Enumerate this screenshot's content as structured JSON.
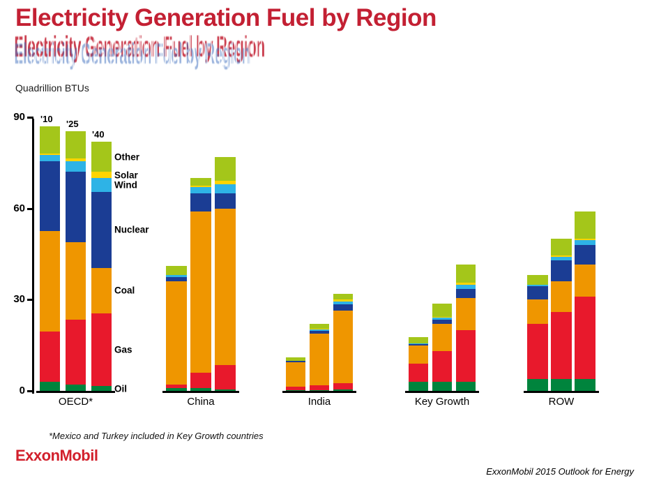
{
  "title": "Electricity Generation Fuel by Region",
  "ghost_title": "Electricity Generation Fuel by Region",
  "units_label": "Quadrillion BTUs",
  "footnote": "*Mexico and Turkey included in Key Growth countries",
  "logo_text": "ExxonMobil",
  "source_text": "ExxonMobil 2015 Outlook for Energy",
  "colors": {
    "title_red": "#c32033",
    "logo_red": "#d2202c",
    "ghost_blue": "#3f6fbf",
    "axis_black": "#000000"
  },
  "chart_data": {
    "type": "bar",
    "stacked": true,
    "title": "Electricity Generation Fuel by Region",
    "ylabel": "Quadrillion BTUs",
    "ylim": [
      0,
      90
    ],
    "yticks": [
      0,
      30,
      60,
      90
    ],
    "grid": false,
    "legend_position": "inline-right-of-first-group",
    "bar_year_labels": [
      "'10",
      "'25",
      "'40"
    ],
    "fuels": [
      {
        "name": "Oil",
        "color": "#00843d"
      },
      {
        "name": "Gas",
        "color": "#e8192c"
      },
      {
        "name": "Coal",
        "color": "#ef9600"
      },
      {
        "name": "Nuclear",
        "color": "#1b3d94"
      },
      {
        "name": "Wind",
        "color": "#2eb3e6"
      },
      {
        "name": "Solar",
        "color": "#ffd400"
      },
      {
        "name": "Other",
        "color": "#a4c61a"
      }
    ],
    "legend_labels": [
      "Other",
      "Solar",
      "Wind",
      "Nuclear",
      "Coal",
      "Gas",
      "Oil"
    ],
    "regions": [
      {
        "label": "OECD*",
        "bars": [
          [
            3,
            16.5,
            33,
            23,
            2,
            0.5,
            9
          ],
          [
            2,
            21.5,
            25.5,
            23,
            3.5,
            1,
            9
          ],
          [
            1.5,
            24,
            15,
            25,
            4.5,
            2,
            10
          ]
        ]
      },
      {
        "label": "China",
        "bars": [
          [
            1,
            1,
            34,
            1.5,
            0.5,
            0,
            3
          ],
          [
            1,
            5,
            53,
            6,
            2,
            0.5,
            2.5
          ],
          [
            0.5,
            8,
            51.5,
            5,
            3,
            1,
            8
          ]
        ]
      },
      {
        "label": "India",
        "bars": [
          [
            0.3,
            1,
            8.2,
            0.3,
            0,
            0,
            1.2
          ],
          [
            0.3,
            1.5,
            17,
            1,
            0.5,
            0.2,
            1.5
          ],
          [
            0.5,
            2,
            24,
            2,
            1,
            0.5,
            2
          ]
        ]
      },
      {
        "label": "Key Growth",
        "bars": [
          [
            3,
            6,
            6,
            0.5,
            0.2,
            0,
            2
          ],
          [
            3,
            10,
            9,
            1.5,
            0.5,
            0.3,
            4.5
          ],
          [
            3,
            17,
            10.5,
            3,
            1.5,
            0.5,
            6
          ]
        ]
      },
      {
        "label": "ROW",
        "bars": [
          [
            4,
            18,
            8,
            4.5,
            0.5,
            0,
            3
          ],
          [
            4,
            22,
            10,
            7,
            1,
            0.5,
            5.5
          ],
          [
            4,
            27,
            10.5,
            6.5,
            1.5,
            0.5,
            9
          ]
        ]
      }
    ]
  }
}
